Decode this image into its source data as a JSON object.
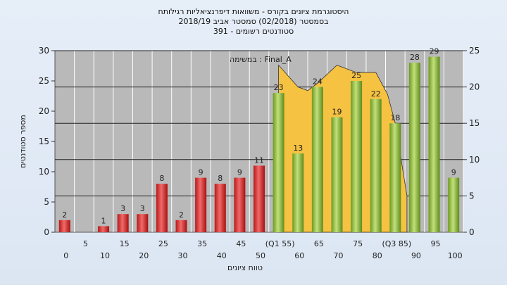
{
  "chart_data": {
    "type": "bar",
    "title_lines": [
      "היסטוגרמת ציונים בקורס - משוואות דיפרנציאליות רגילותח",
      "בסמסטר  (02/2018)  סמסטר אביב 2018/19",
      "סטודנטים רשומים - 391"
    ],
    "note": "במשימה : Final_A",
    "xlabel": "טווח ציונים",
    "ylabel": "מספר סטודנטים",
    "ylim": [
      0,
      30
    ],
    "y2lim": [
      0,
      25
    ],
    "yticks": [
      0,
      5,
      10,
      15,
      20,
      25,
      30
    ],
    "y2ticks": [
      0,
      5,
      10,
      15,
      20,
      25
    ],
    "upper_tick_labels": [
      "5",
      "15",
      "25",
      "35",
      "45",
      "(Q1 55)",
      "65",
      "75",
      "(Q3 85)",
      "95"
    ],
    "lower_tick_labels": [
      "0",
      "10",
      "20",
      "30",
      "40",
      "50",
      "60",
      "70",
      "80",
      "90",
      "100"
    ],
    "bars": [
      {
        "label": "0",
        "value": 2,
        "color": "red"
      },
      {
        "label": "10",
        "value": 1,
        "color": "red"
      },
      {
        "label": "15",
        "value": 3,
        "color": "red"
      },
      {
        "label": "20",
        "value": 3,
        "color": "red"
      },
      {
        "label": "25",
        "value": 8,
        "color": "red"
      },
      {
        "label": "30",
        "value": 2,
        "color": "red"
      },
      {
        "label": "35",
        "value": 9,
        "color": "red"
      },
      {
        "label": "40",
        "value": 8,
        "color": "red"
      },
      {
        "label": "45",
        "value": 9,
        "color": "red"
      },
      {
        "label": "50",
        "value": 11,
        "color": "red"
      },
      {
        "label": "55",
        "value": 23,
        "color": "green"
      },
      {
        "label": "60",
        "value": 13,
        "color": "green"
      },
      {
        "label": "65",
        "value": 24,
        "color": "green"
      },
      {
        "label": "70",
        "value": 19,
        "color": "green"
      },
      {
        "label": "75",
        "value": 25,
        "color": "green"
      },
      {
        "label": "80",
        "value": 22,
        "color": "green"
      },
      {
        "label": "85",
        "value": 18,
        "color": "green"
      },
      {
        "label": "90",
        "value": 28,
        "color": "green"
      },
      {
        "label": "95",
        "value": 29,
        "color": "green"
      },
      {
        "label": "100",
        "value": 9,
        "color": "green"
      }
    ],
    "area_series": {
      "color": "#f5c242",
      "points": [
        [
          55,
          23
        ],
        [
          60,
          20
        ],
        [
          62.5,
          19.5
        ],
        [
          65,
          20.5
        ],
        [
          70,
          23
        ],
        [
          75,
          22
        ],
        [
          80,
          22
        ],
        [
          83,
          19
        ],
        [
          85,
          15
        ],
        [
          88,
          5
        ]
      ]
    },
    "colors": {
      "red": "#e03030",
      "green": "#8fbe3a",
      "area": "#f5c242",
      "plot_bg": "#b9b9b9"
    }
  }
}
